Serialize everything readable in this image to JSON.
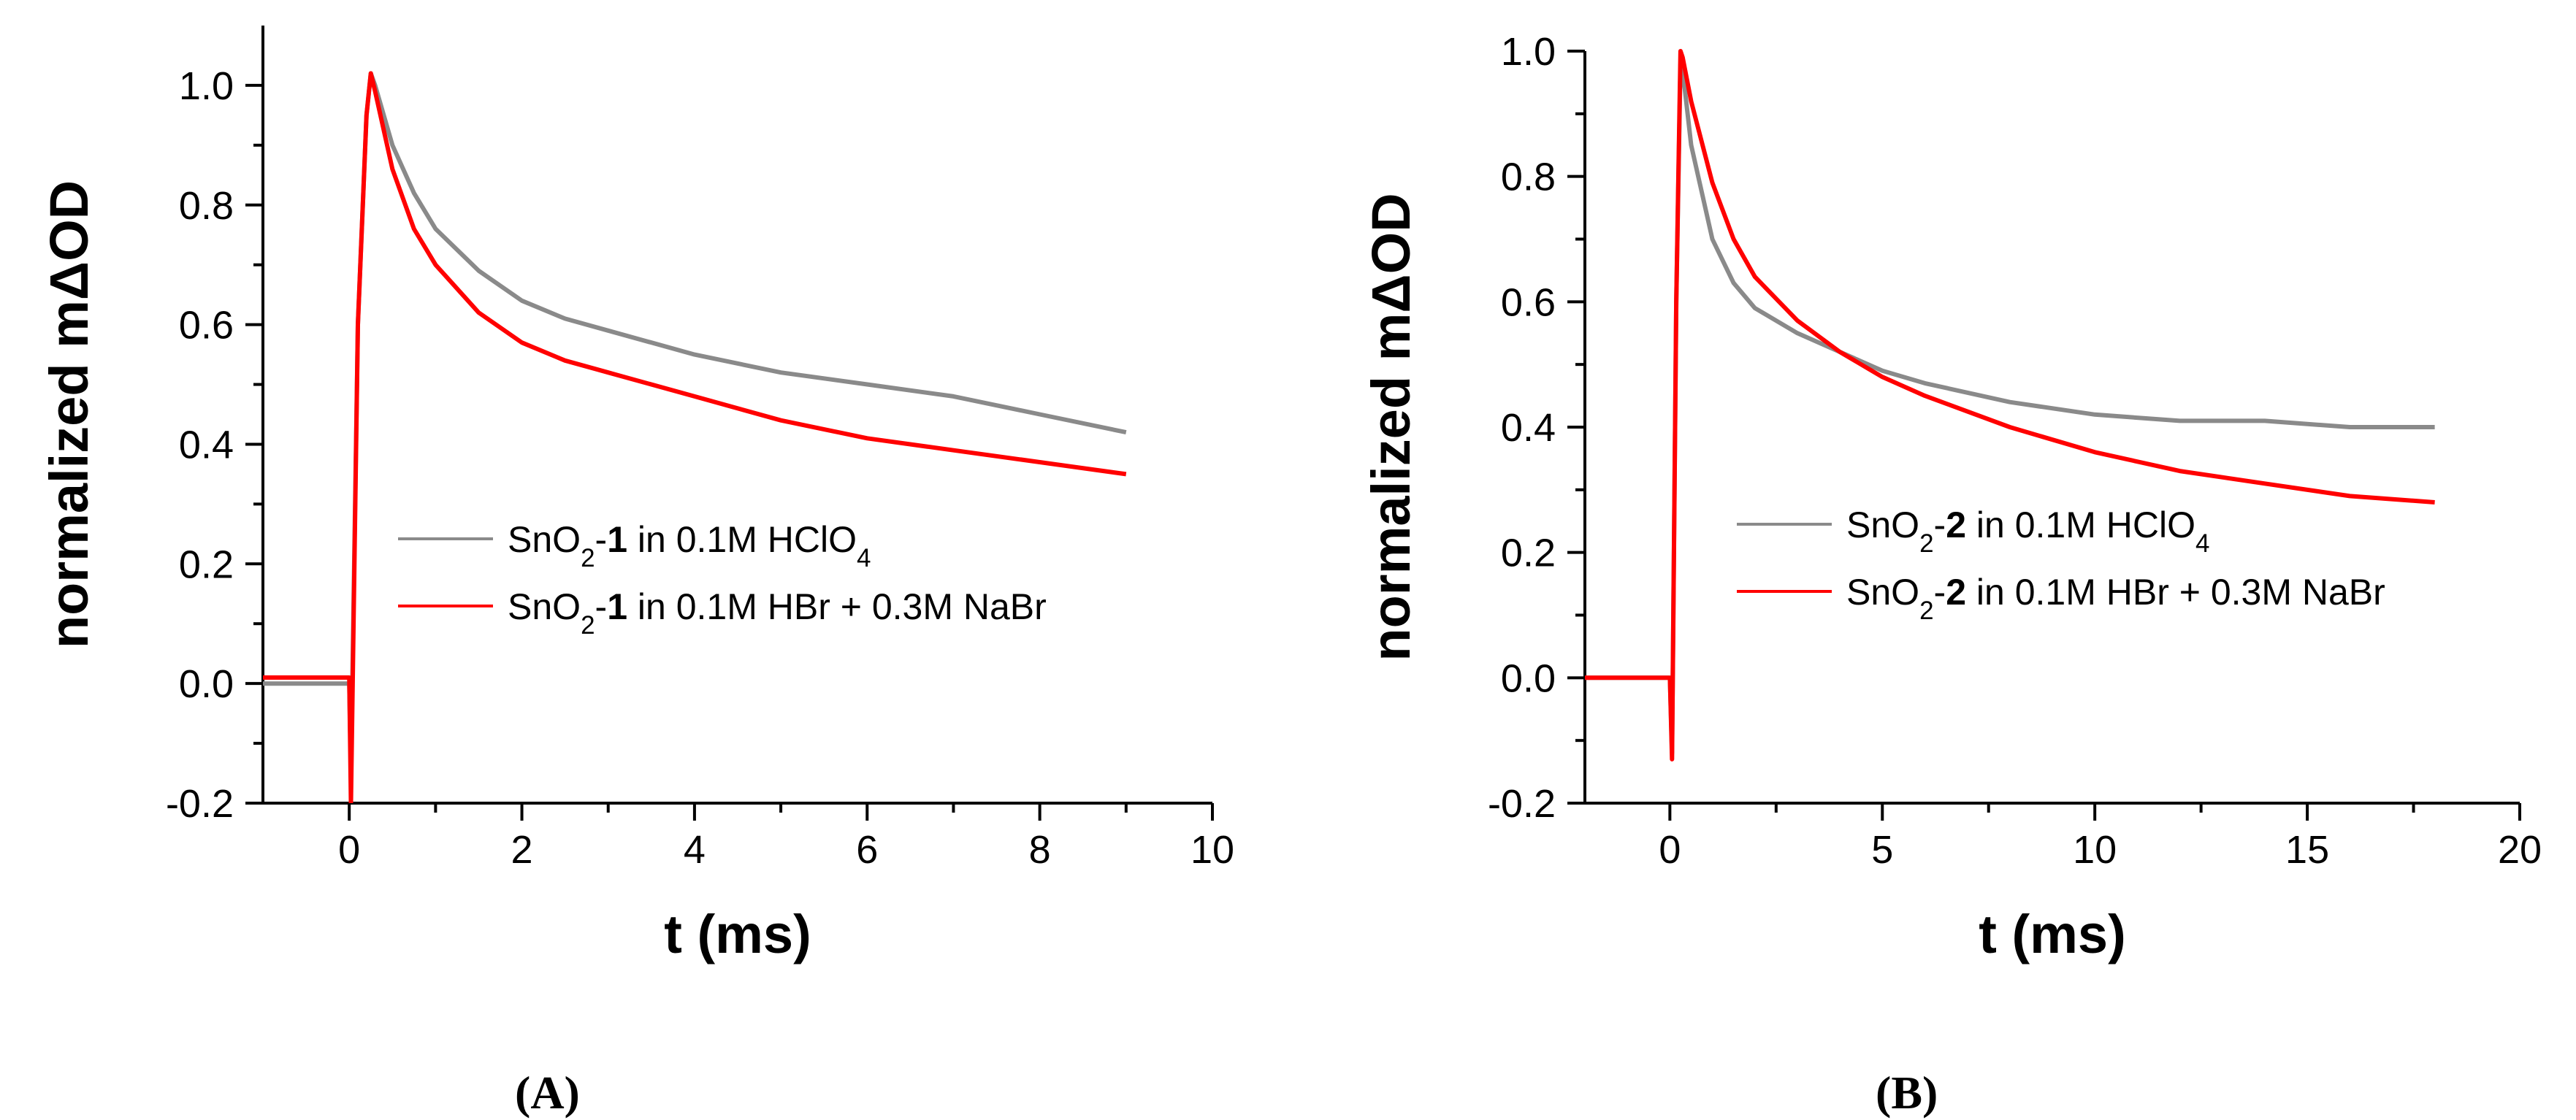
{
  "figure": {
    "panel_labels": [
      "(A)",
      "(B)"
    ]
  },
  "colors": {
    "gray_series": "#8a8a8a",
    "red_series": "#ff0000",
    "axis": "#000000"
  },
  "chart_data": [
    {
      "type": "line",
      "panel": "(A)",
      "xlabel": "t (ms)",
      "ylabel": "normalized mΔOD",
      "xlim": [
        -1,
        10
      ],
      "ylim": [
        -0.2,
        1.1
      ],
      "xticks": [
        0,
        2,
        4,
        6,
        8,
        10
      ],
      "xtick_labels": [
        "0",
        "2",
        "4",
        "6",
        "8",
        "10"
      ],
      "yticks": [
        -0.2,
        0.0,
        0.2,
        0.4,
        0.6,
        0.8,
        1.0
      ],
      "ytick_labels": [
        "-0.2",
        "0.0",
        "0.2",
        "0.4",
        "0.6",
        "0.8",
        "1.0"
      ],
      "grid": false,
      "legend_position": "center-right",
      "series": [
        {
          "label_prefix": "SnO",
          "label_sub": "2",
          "label_dash": "-",
          "label_bold": "1",
          "label_rest": " in 0.1M HClO",
          "label_tail_sub": "4",
          "color": "#8a8a8a",
          "x": [
            -1,
            0,
            0.02,
            0.1,
            0.2,
            0.25,
            0.3,
            0.5,
            0.75,
            1,
            1.5,
            2,
            2.5,
            3,
            4,
            5,
            6,
            7,
            8,
            9
          ],
          "y": [
            0.0,
            0.0,
            -0.15,
            0.6,
            0.95,
            1.02,
            1.0,
            0.9,
            0.82,
            0.76,
            0.69,
            0.64,
            0.61,
            0.59,
            0.55,
            0.52,
            0.5,
            0.48,
            0.45,
            0.42
          ]
        },
        {
          "label_prefix": "SnO",
          "label_sub": "2",
          "label_dash": "-",
          "label_bold": "1",
          "label_rest": " in 0.1M HBr + 0.3M NaBr",
          "label_tail_sub": "",
          "color": "#ff0000",
          "x": [
            -1,
            0,
            0.02,
            0.1,
            0.2,
            0.25,
            0.3,
            0.5,
            0.75,
            1,
            1.5,
            2,
            2.5,
            3,
            4,
            5,
            6,
            7,
            8,
            9
          ],
          "y": [
            0.01,
            0.01,
            -0.2,
            0.6,
            0.95,
            1.02,
            0.99,
            0.86,
            0.76,
            0.7,
            0.62,
            0.57,
            0.54,
            0.52,
            0.48,
            0.44,
            0.41,
            0.39,
            0.37,
            0.35
          ]
        }
      ]
    },
    {
      "type": "line",
      "panel": "(B)",
      "xlabel": "t (ms)",
      "ylabel": "normalized mΔOD",
      "xlim": [
        -2,
        20
      ],
      "ylim": [
        -0.2,
        1.0
      ],
      "xticks": [
        0,
        5,
        10,
        15,
        20
      ],
      "xtick_labels": [
        "0",
        "5",
        "10",
        "15",
        "20"
      ],
      "yticks": [
        -0.2,
        0.0,
        0.2,
        0.4,
        0.6,
        0.8,
        1.0
      ],
      "ytick_labels": [
        "-0.2",
        "0.0",
        "0.2",
        "0.4",
        "0.6",
        "0.8",
        "1.0"
      ],
      "grid": false,
      "legend_position": "center-right",
      "series": [
        {
          "label_prefix": "SnO",
          "label_sub": "2",
          "label_dash": "-",
          "label_bold": "2",
          "label_rest": " in 0.1M HClO",
          "label_tail_sub": "4",
          "color": "#8a8a8a",
          "x": [
            -2,
            0,
            0.05,
            0.15,
            0.25,
            0.3,
            0.5,
            1,
            1.5,
            2,
            3,
            4,
            5,
            6,
            8,
            10,
            12,
            14,
            16,
            18
          ],
          "y": [
            0.0,
            0.0,
            -0.12,
            0.6,
            0.98,
            0.97,
            0.85,
            0.7,
            0.63,
            0.59,
            0.55,
            0.52,
            0.49,
            0.47,
            0.44,
            0.42,
            0.41,
            0.41,
            0.4,
            0.4
          ]
        },
        {
          "label_prefix": "SnO",
          "label_sub": "2",
          "label_dash": "-",
          "label_bold": "2",
          "label_rest": " in 0.1M HBr + 0.3M NaBr",
          "label_tail_sub": "",
          "color": "#ff0000",
          "x": [
            -2,
            0,
            0.05,
            0.15,
            0.25,
            0.3,
            0.5,
            1,
            1.5,
            2,
            3,
            4,
            5,
            6,
            8,
            10,
            12,
            14,
            16,
            18
          ],
          "y": [
            0.0,
            0.0,
            -0.13,
            0.6,
            1.0,
            0.99,
            0.92,
            0.79,
            0.7,
            0.64,
            0.57,
            0.52,
            0.48,
            0.45,
            0.4,
            0.36,
            0.33,
            0.31,
            0.29,
            0.28
          ]
        }
      ]
    }
  ]
}
